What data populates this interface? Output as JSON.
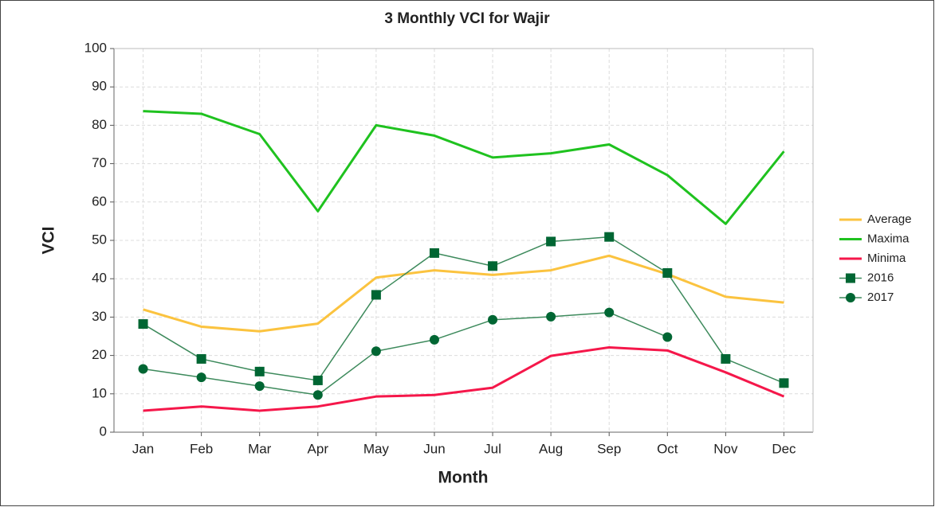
{
  "chart_data": {
    "type": "line",
    "title": "3 Monthly VCI for Wajir",
    "x_label": "Month",
    "y_label": "VCI",
    "categories": [
      "Jan",
      "Feb",
      "Mar",
      "Apr",
      "May",
      "Jun",
      "Jul",
      "Aug",
      "Sep",
      "Oct",
      "Nov",
      "Dec"
    ],
    "series": [
      {
        "name": "Average",
        "color": "#fbc33f",
        "marker": "none",
        "values": [
          32,
          27.5,
          26.3,
          28.3,
          40.3,
          42.2,
          41,
          42.2,
          46,
          41.2,
          35.3,
          33.8
        ]
      },
      {
        "name": "Maxima",
        "color": "#1fc21f",
        "marker": "none",
        "values": [
          83.7,
          83,
          77.7,
          57.6,
          80,
          77.3,
          71.6,
          72.7,
          75,
          67,
          54.3,
          73.2
        ]
      },
      {
        "name": "Minima",
        "color": "#f5174a",
        "marker": "none",
        "values": [
          5.6,
          6.7,
          5.6,
          6.7,
          9.3,
          9.7,
          11.6,
          19.9,
          22.1,
          21.3,
          15.6,
          9.3
        ]
      },
      {
        "name": "2016",
        "color": "#006633",
        "marker": "square",
        "values": [
          28.2,
          19.1,
          15.8,
          13.5,
          35.8,
          46.7,
          43.3,
          49.7,
          50.9,
          41.5,
          19.1,
          12.8
        ]
      },
      {
        "name": "2017",
        "color": "#006633",
        "marker": "circle",
        "values": [
          16.5,
          14.3,
          12,
          9.7,
          21.1,
          24.1,
          29.3,
          30.1,
          31.2,
          24.8,
          null,
          null
        ]
      }
    ],
    "ylim": [
      0,
      100
    ],
    "yticks": [
      0,
      10,
      20,
      30,
      40,
      50,
      60,
      70,
      80,
      90,
      100
    ],
    "grid": true,
    "legend": "right"
  }
}
